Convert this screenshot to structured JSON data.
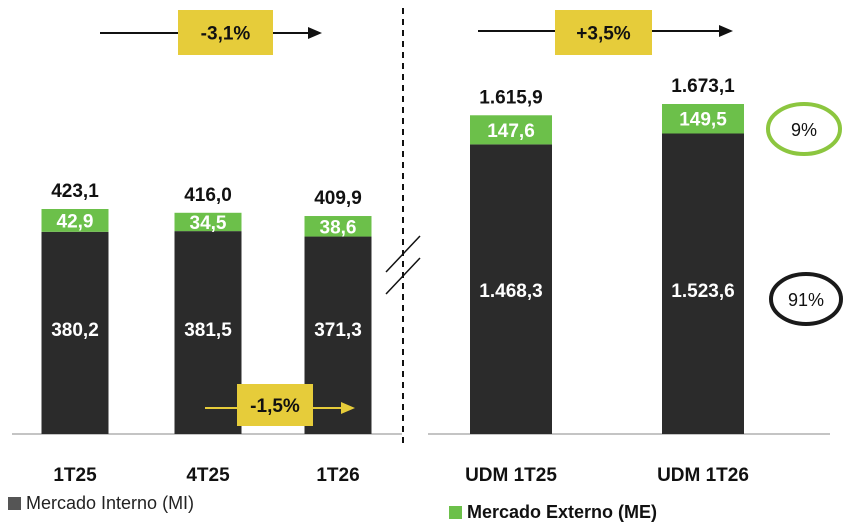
{
  "chart_data": [
    {
      "type": "bar",
      "stacked": true,
      "categories": [
        "1T25",
        "4T25",
        "1T26"
      ],
      "series": [
        {
          "name": "Mercado Interno (MI)",
          "values": [
            380.2,
            381.5,
            371.3
          ],
          "labels": [
            "380,2",
            "381,5",
            "371,3"
          ],
          "color": "#2b2b2b"
        },
        {
          "name": "Mercado Externo (ME)",
          "values": [
            42.9,
            34.5,
            38.6
          ],
          "labels": [
            "42,9",
            "34,5",
            "38,6"
          ],
          "color": "#6cc04a"
        }
      ],
      "totals": [
        423.1,
        416.0,
        409.9
      ],
      "total_labels": [
        "423,1",
        "416,0",
        "409,9"
      ],
      "annotations": [
        {
          "text": "-3,1%",
          "from": "1T25",
          "to": "1T26",
          "position": "top"
        },
        {
          "text": "-1,5%",
          "from": "4T25",
          "to": "1T26",
          "position": "bottom"
        }
      ]
    },
    {
      "type": "bar",
      "stacked": true,
      "axis_break": true,
      "categories": [
        "UDM 1T25",
        "UDM 1T26"
      ],
      "series": [
        {
          "name": "Mercado Interno (MI)",
          "values": [
            1468.3,
            1523.6
          ],
          "labels": [
            "1.468,3",
            "1.523,6"
          ],
          "color": "#2b2b2b"
        },
        {
          "name": "Mercado Externo (ME)",
          "values": [
            147.6,
            149.5
          ],
          "labels": [
            "147,6",
            "149,5"
          ],
          "color": "#6cc04a"
        }
      ],
      "totals": [
        1615.9,
        1673.1
      ],
      "total_labels": [
        "1.615,9",
        "1.673,1"
      ],
      "annotations": [
        {
          "text": "+3,5%",
          "from": "UDM 1T25",
          "to": "UDM 1T26",
          "position": "top"
        }
      ],
      "shares": [
        {
          "text": "9%",
          "series": "Mercado Externo (ME)",
          "color": "#8cc63f"
        },
        {
          "text": "91%",
          "series": "Mercado Interno (MI)",
          "color": "#1a1a1a"
        }
      ]
    }
  ],
  "legend": [
    {
      "label": "Mercado Interno (MI)",
      "color": "#555555"
    },
    {
      "label": "Mercado Externo (ME)",
      "color": "#6cc04a"
    }
  ],
  "colors": {
    "mi": "#2b2b2b",
    "me": "#6cc04a",
    "badge": "#e6cc3a",
    "axis": "#888888"
  }
}
